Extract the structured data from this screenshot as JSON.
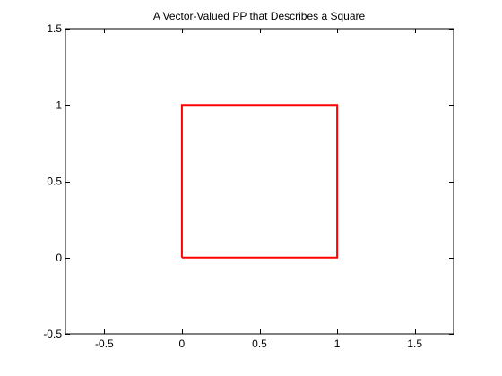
{
  "chart_data": {
    "type": "line",
    "title": "A Vector-Valued PP that Describes a Square",
    "xlabel": "",
    "ylabel": "",
    "xlim": [
      -0.75,
      1.75
    ],
    "ylim": [
      -0.5,
      1.5
    ],
    "xticks": [
      -0.5,
      0,
      0.5,
      1,
      1.5
    ],
    "yticks": [
      -0.5,
      0,
      0.5,
      1,
      1.5
    ],
    "xtick_labels": [
      "-0.5",
      "0",
      "0.5",
      "1",
      "1.5"
    ],
    "ytick_labels": [
      "-0.5",
      "0",
      "0.5",
      "1",
      "1.5"
    ],
    "grid": false,
    "series": [
      {
        "color": "#ff0000",
        "x": [
          0,
          1,
          1,
          0,
          0
        ],
        "y": [
          0,
          0,
          1,
          1,
          0
        ]
      }
    ]
  }
}
